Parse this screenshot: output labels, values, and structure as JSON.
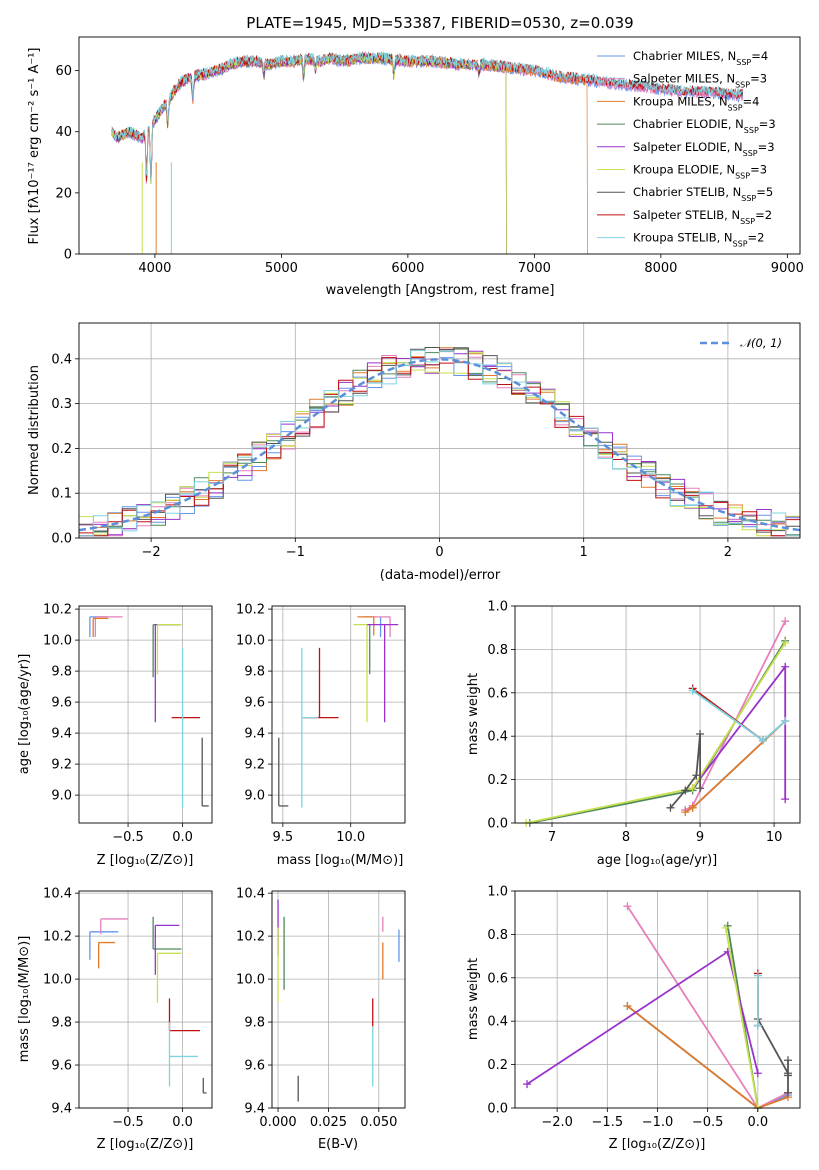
{
  "chart_data": [
    {
      "id": "spectrum",
      "type": "line",
      "title": "PLATE=1945, MJD=53387, FIBERID=0530, z=0.039",
      "xlabel": "wavelength [Angstrom, rest frame]",
      "ylabel": "Flux [fλ10⁻¹⁷ erg cm⁻² s⁻¹ A⁻¹]",
      "xlim": [
        3400,
        9100
      ],
      "ylim": [
        0,
        71
      ],
      "xticks": [
        4000,
        5000,
        6000,
        7000,
        8000,
        9000
      ],
      "yticks": [
        0,
        20,
        40,
        60
      ],
      "grid": false,
      "legend_position": "top-right",
      "continuum": {
        "x": [
          3660,
          3700,
          3800,
          3900,
          4000,
          4100,
          4200,
          4300,
          4400,
          4500,
          4600,
          4700,
          4800,
          4900,
          5000,
          5100,
          5200,
          5300,
          5400,
          5500,
          5600,
          5800,
          6000,
          6200,
          6400,
          6600,
          6800,
          7000,
          7200,
          7400,
          7600,
          7800,
          8000,
          8200,
          8400,
          8600,
          8650
        ],
        "y": [
          40,
          38,
          40,
          38,
          44,
          50,
          56,
          58,
          59,
          60,
          62,
          63,
          63,
          62,
          63,
          63,
          64,
          63,
          64,
          63,
          64,
          64,
          63,
          63,
          62,
          62,
          61,
          60,
          58,
          57,
          56,
          55,
          54,
          53,
          53,
          52,
          52
        ]
      },
      "absorption_lines": [
        {
          "x": 3934,
          "depth": 16
        },
        {
          "x": 3969,
          "depth": 18
        },
        {
          "x": 4102,
          "depth": 8
        },
        {
          "x": 4300,
          "depth": 7
        },
        {
          "x": 4861,
          "depth": 4
        },
        {
          "x": 5175,
          "depth": 6
        },
        {
          "x": 5270,
          "depth": 3
        },
        {
          "x": 5890,
          "depth": 5
        },
        {
          "x": 6563,
          "depth": 3
        }
      ],
      "series": [
        {
          "name": "Chabrier MILES, N",
          "sub": "SSP",
          "suffix": "=4",
          "color": "#6495ed",
          "drop_at": null
        },
        {
          "name": "Salpeter MILES, N",
          "sub": "SSP",
          "suffix": "=3",
          "color": "#e67fbc",
          "drop_at": null
        },
        {
          "name": "Kroupa MILES, N",
          "sub": "SSP",
          "suffix": "=4",
          "color": "#e07b2a",
          "drop_at": 7420
        },
        {
          "name": "Chabrier ELODIE, N",
          "sub": "SSP",
          "suffix": "=3",
          "color": "#4f8a5a",
          "drop_at": 6780
        },
        {
          "name": "Salpeter ELODIE, N",
          "sub": "SSP",
          "suffix": "=3",
          "color": "#9932cc",
          "drop_at": 6780
        },
        {
          "name": "Kroupa ELODIE, N",
          "sub": "SSP",
          "suffix": "=3",
          "color": "#c8e050",
          "drop_at": 6780
        },
        {
          "name": "Chabrier STELIB, N",
          "sub": "SSP",
          "suffix": "=5",
          "color": "#555555",
          "drop_at": null
        },
        {
          "name": "Salpeter STELIB, N",
          "sub": "SSP",
          "suffix": "=2",
          "color": "#c01010",
          "drop_at": null
        },
        {
          "name": "Kroupa STELIB, N",
          "sub": "SSP",
          "suffix": "=2",
          "color": "#7fd3e0",
          "drop_at": null
        }
      ]
    },
    {
      "id": "residuals",
      "type": "line",
      "xlabel": "(data-model)/error",
      "ylabel": "Normed distribution",
      "xlim": [
        -2.5,
        2.5
      ],
      "ylim": [
        0,
        0.48
      ],
      "xticks": [
        -2,
        -1,
        0,
        1,
        2
      ],
      "yticks": [
        0.0,
        0.1,
        0.2,
        0.3,
        0.4
      ],
      "grid": true,
      "legend_position": "top-right",
      "reference": {
        "name": "𝒩(0, 1)",
        "color": "#5b8fd9",
        "mean": 0,
        "sigma": 1
      },
      "bin_width": 0.1,
      "bin_start": -2.5
    },
    {
      "id": "age_vs_Z",
      "type": "scatter",
      "xlabel": "Z [log₁₀(Z/Z⊙)]",
      "ylabel": "age  [log₁₀(age/yr)]",
      "xlim": [
        -0.95,
        0.27
      ],
      "ylim": [
        8.82,
        10.22
      ],
      "xticks": [
        -0.5,
        0.0
      ],
      "yticks": [
        9.0,
        9.2,
        9.4,
        9.6,
        9.8,
        10.0,
        10.2
      ],
      "grid": true,
      "points": [
        {
          "x": -0.85,
          "y": 10.15,
          "xerr": [
            0.0,
            0.16
          ],
          "yerr": [
            0.13,
            0.0
          ],
          "color": "#6495ed"
        },
        {
          "x": -0.8,
          "y": 10.15,
          "xerr": [
            0.0,
            0.25
          ],
          "yerr": [
            0.13,
            0.0
          ],
          "color": "#e67fbc"
        },
        {
          "x": -0.82,
          "y": 10.14,
          "xerr": [
            0.0,
            0.14
          ],
          "yerr": [
            0.12,
            0.0
          ],
          "color": "#e07b2a"
        },
        {
          "x": -0.27,
          "y": 10.1,
          "xerr": [
            0.0,
            0.26
          ],
          "yerr": [
            0.34,
            0.0
          ],
          "color": "#4f8a5a"
        },
        {
          "x": -0.25,
          "y": 10.1,
          "xerr": [
            0.0,
            0.22
          ],
          "yerr": [
            0.63,
            0.0
          ],
          "color": "#9932cc"
        },
        {
          "x": -0.23,
          "y": 10.1,
          "xerr": [
            0.0,
            0.22
          ],
          "yerr": [
            0.32,
            0.0
          ],
          "color": "#c8e050"
        },
        {
          "x": 0.18,
          "y": 8.93,
          "xerr": [
            0.0,
            0.06
          ],
          "yerr": [
            0.0,
            0.44
          ],
          "color": "#555555"
        },
        {
          "x": -0.1,
          "y": 9.5,
          "xerr": [
            0.0,
            0.26
          ],
          "yerr": [
            0.0,
            0.0
          ],
          "color": "#c01010"
        },
        {
          "x": 0.0,
          "y": 9.5,
          "xerr": [
            0.0,
            0.0
          ],
          "yerr": [
            0.58,
            0.45
          ],
          "color": "#7fd3e0"
        }
      ]
    },
    {
      "id": "age_vs_mass",
      "type": "scatter",
      "xlabel": "mass [log₁₀(M/M⊙)]",
      "xlim": [
        9.42,
        10.4
      ],
      "ylim": [
        8.82,
        10.22
      ],
      "xticks": [
        9.5,
        10.0
      ],
      "yticks": [
        9.0,
        9.2,
        9.4,
        9.6,
        9.8,
        10.0,
        10.2
      ],
      "grid": true,
      "points": [
        {
          "x": 10.22,
          "y": 10.15,
          "xerr": [
            0.0,
            0.0
          ],
          "yerr": [
            0.13,
            0.0
          ],
          "color": "#6495ed"
        },
        {
          "x": 10.29,
          "y": 10.15,
          "xerr": [
            0.2,
            0.0
          ],
          "yerr": [
            0.13,
            0.0
          ],
          "color": "#e67fbc"
        },
        {
          "x": 10.17,
          "y": 10.15,
          "xerr": [
            0.12,
            0.0
          ],
          "yerr": [
            0.12,
            0.0
          ],
          "color": "#e07b2a"
        },
        {
          "x": 10.14,
          "y": 10.1,
          "xerr": [
            0.0,
            0.0
          ],
          "yerr": [
            0.32,
            0.0
          ],
          "color": "#4f8a5a"
        },
        {
          "x": 10.25,
          "y": 10.1,
          "xerr": [
            0.13,
            0.1
          ],
          "yerr": [
            0.63,
            0.0
          ],
          "color": "#9932cc"
        },
        {
          "x": 10.12,
          "y": 10.1,
          "xerr": [
            0.1,
            0.0
          ],
          "yerr": [
            0.63,
            0.0
          ],
          "color": "#c8e050"
        },
        {
          "x": 9.47,
          "y": 8.93,
          "xerr": [
            0.0,
            0.07
          ],
          "yerr": [
            0.0,
            0.44
          ],
          "color": "#555555"
        },
        {
          "x": 9.77,
          "y": 9.5,
          "xerr": [
            0.12,
            0.14
          ],
          "yerr": [
            0.0,
            0.45
          ],
          "color": "#c01010"
        },
        {
          "x": 9.64,
          "y": 9.5,
          "xerr": [
            0.0,
            0.12
          ],
          "yerr": [
            0.58,
            0.45
          ],
          "color": "#7fd3e0"
        }
      ]
    },
    {
      "id": "mass_weight_vs_age",
      "type": "line",
      "xlabel": "age  [log₁₀(age/yr)]",
      "ylabel": "mass weight",
      "xlim": [
        6.5,
        10.35
      ],
      "ylim": [
        0,
        1.0
      ],
      "xticks": [
        7,
        8,
        9,
        10
      ],
      "yticks": [
        0.0,
        0.2,
        0.4,
        0.6,
        0.8,
        1.0
      ],
      "grid": true,
      "series": [
        {
          "color": "#6495ed",
          "x": [
            8.8,
            8.9,
            10.15
          ],
          "y": [
            0.06,
            0.07,
            0.47
          ]
        },
        {
          "color": "#e67fbc",
          "x": [
            8.8,
            8.9,
            10.15
          ],
          "y": [
            0.06,
            0.08,
            0.93
          ]
        },
        {
          "color": "#e07b2a",
          "x": [
            8.8,
            8.9,
            10.15
          ],
          "y": [
            0.05,
            0.07,
            0.47
          ]
        },
        {
          "color": "#4f8a5a",
          "x": [
            6.7,
            8.9,
            10.15
          ],
          "y": [
            0.0,
            0.15,
            0.84
          ]
        },
        {
          "color": "#9932cc",
          "x": [
            8.9,
            10.15,
            10.15
          ],
          "y": [
            0.16,
            0.72,
            0.11
          ]
        },
        {
          "color": "#c8e050",
          "x": [
            6.65,
            8.9,
            10.15
          ],
          "y": [
            0.0,
            0.16,
            0.83
          ]
        },
        {
          "color": "#555555",
          "x": [
            8.6,
            8.8,
            8.95,
            9.0,
            9.0
          ],
          "y": [
            0.07,
            0.15,
            0.22,
            0.41,
            0.16
          ]
        },
        {
          "color": "#c01010",
          "x": [
            8.9,
            9.85
          ],
          "y": [
            0.62,
            0.38
          ]
        },
        {
          "color": "#7fd3e0",
          "x": [
            8.9,
            9.85,
            10.15
          ],
          "y": [
            0.61,
            0.38,
            0.47
          ]
        }
      ]
    },
    {
      "id": "mass_vs_Z",
      "type": "scatter",
      "xlabel": "Z [log₁₀(Z/Z⊙)]",
      "ylabel": "mass [log₁₀(M/M⊙)]",
      "xlim": [
        -0.95,
        0.27
      ],
      "ylim": [
        9.4,
        10.41
      ],
      "xticks": [
        -0.5,
        0.0
      ],
      "yticks": [
        9.4,
        9.6,
        9.8,
        10.0,
        10.2,
        10.4
      ],
      "grid": true,
      "points": [
        {
          "x": -0.85,
          "y": 10.22,
          "xerr": [
            0.0,
            0.26
          ],
          "yerr": [
            0.13,
            0.0
          ],
          "color": "#6495ed"
        },
        {
          "x": -0.75,
          "y": 10.28,
          "xerr": [
            0.0,
            0.25
          ],
          "yerr": [
            0.07,
            0.0
          ],
          "color": "#e67fbc"
        },
        {
          "x": -0.77,
          "y": 10.17,
          "xerr": [
            0.0,
            0.15
          ],
          "yerr": [
            0.12,
            0.0
          ],
          "color": "#e07b2a"
        },
        {
          "x": -0.27,
          "y": 10.14,
          "xerr": [
            0.0,
            0.26
          ],
          "yerr": [
            0.0,
            0.15
          ],
          "color": "#4f8a5a"
        },
        {
          "x": -0.25,
          "y": 10.25,
          "xerr": [
            0.0,
            0.22
          ],
          "yerr": [
            0.23,
            0.0
          ],
          "color": "#9932cc"
        },
        {
          "x": -0.23,
          "y": 10.12,
          "xerr": [
            0.0,
            0.22
          ],
          "yerr": [
            0.23,
            0.0
          ],
          "color": "#c8e050"
        },
        {
          "x": 0.19,
          "y": 9.47,
          "xerr": [
            0.0,
            0.03
          ],
          "yerr": [
            0.0,
            0.07
          ],
          "color": "#555555"
        },
        {
          "x": -0.12,
          "y": 9.76,
          "xerr": [
            0.0,
            0.28
          ],
          "yerr": [
            0.0,
            0.15
          ],
          "color": "#c01010"
        },
        {
          "x": -0.12,
          "y": 9.64,
          "xerr": [
            0.0,
            0.26
          ],
          "yerr": [
            0.14,
            0.16
          ],
          "color": "#7fd3e0"
        }
      ]
    },
    {
      "id": "mass_vs_EBV",
      "type": "scatter",
      "xlabel": "E(B-V)",
      "xlim": [
        -0.003,
        0.063
      ],
      "ylim": [
        9.4,
        10.41
      ],
      "xticks": [
        0.0,
        0.025,
        0.05
      ],
      "xtick_labels": [
        "0.000",
        "0.025",
        "0.050"
      ],
      "yticks": [
        9.4,
        9.6,
        9.8,
        10.0,
        10.2,
        10.4
      ],
      "grid": true,
      "points": [
        {
          "x": 0.06,
          "y": 10.16,
          "yerr": [
            0.08,
            0.07
          ],
          "color": "#6495ed"
        },
        {
          "x": 0.052,
          "y": 10.22,
          "yerr": [
            0.0,
            0.07
          ],
          "color": "#e67fbc"
        },
        {
          "x": 0.052,
          "y": 10.1,
          "yerr": [
            0.1,
            0.07
          ],
          "color": "#e07b2a"
        },
        {
          "x": 0.003,
          "y": 10.12,
          "yerr": [
            0.17,
            0.17
          ],
          "color": "#4f8a5a"
        },
        {
          "x": 0.0,
          "y": 10.25,
          "yerr": [
            0.14,
            0.12
          ],
          "color": "#9932cc"
        },
        {
          "x": 0.0,
          "y": 10.12,
          "yerr": [
            0.23,
            0.12
          ],
          "color": "#c8e050"
        },
        {
          "x": 0.01,
          "y": 9.49,
          "yerr": [
            0.06,
            0.06
          ],
          "color": "#555555"
        },
        {
          "x": 0.047,
          "y": 9.84,
          "yerr": [
            0.06,
            0.07
          ],
          "color": "#c01010"
        },
        {
          "x": 0.047,
          "y": 9.68,
          "yerr": [
            0.18,
            0.1
          ],
          "color": "#7fd3e0"
        }
      ]
    },
    {
      "id": "mass_weight_vs_Z",
      "type": "line",
      "xlabel": "Z [log₁₀(Z/Z⊙)]",
      "ylabel": "mass weight",
      "xlim": [
        -2.42,
        0.42
      ],
      "ylim": [
        0,
        1.0
      ],
      "xticks": [
        -2.0,
        -1.5,
        -1.0,
        -0.5,
        0.0
      ],
      "yticks": [
        0.0,
        0.2,
        0.4,
        0.6,
        0.8,
        1.0
      ],
      "grid": true,
      "series": [
        {
          "color": "#6495ed",
          "x": [
            -1.3,
            0.0,
            0.3
          ],
          "y": [
            0.47,
            0.0,
            0.06
          ]
        },
        {
          "color": "#e67fbc",
          "x": [
            -1.3,
            0.0,
            0.3
          ],
          "y": [
            0.93,
            0.0,
            0.07
          ]
        },
        {
          "color": "#e07b2a",
          "x": [
            -1.3,
            0.0,
            0.3
          ],
          "y": [
            0.47,
            0.0,
            0.05
          ]
        },
        {
          "color": "#4f8a5a",
          "x": [
            -0.3,
            0.0
          ],
          "y": [
            0.84,
            0.0
          ]
        },
        {
          "color": "#9932cc",
          "x": [
            -2.3,
            -0.3,
            0.0
          ],
          "y": [
            0.11,
            0.72,
            0.16
          ]
        },
        {
          "color": "#c8e050",
          "x": [
            -0.32,
            0.0
          ],
          "y": [
            0.83,
            0.0
          ]
        },
        {
          "color": "#555555",
          "x": [
            0.0,
            0.3,
            0.3,
            0.3,
            0.3
          ],
          "y": [
            0.41,
            0.16,
            0.22,
            0.07,
            0.15
          ]
        },
        {
          "color": "#c01010",
          "x": [
            0.0,
            0.0
          ],
          "y": [
            0.62,
            0.38
          ]
        },
        {
          "color": "#7fd3e0",
          "x": [
            0.0,
            0.0
          ],
          "y": [
            0.61,
            0.38
          ]
        }
      ]
    }
  ]
}
